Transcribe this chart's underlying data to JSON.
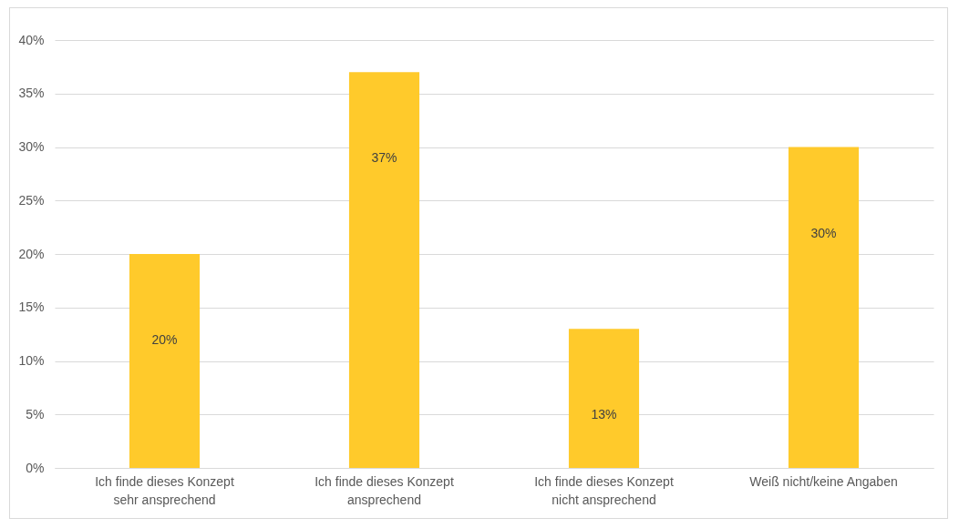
{
  "chart_data": {
    "type": "bar",
    "categories": [
      "Ich finde dieses Konzept sehr ansprechend",
      "Ich finde dieses Konzept ansprechend",
      "Ich finde dieses Konzept nicht ansprechend",
      "Weiß nicht/keine Angaben"
    ],
    "values": [
      20,
      37,
      13,
      30
    ],
    "value_labels": [
      "20%",
      "37%",
      "13%",
      "30%"
    ],
    "color": "#ffca2b",
    "ylim": [
      0,
      40
    ],
    "yticks": [
      {
        "value": 0,
        "label": "0%"
      },
      {
        "value": 5,
        "label": "5%"
      },
      {
        "value": 10,
        "label": "10%"
      },
      {
        "value": 15,
        "label": "15%"
      },
      {
        "value": 20,
        "label": "20%"
      },
      {
        "value": 25,
        "label": "25%"
      },
      {
        "value": 30,
        "label": "30%"
      },
      {
        "value": 35,
        "label": "35%"
      },
      {
        "value": 40,
        "label": "40%"
      }
    ],
    "grid": "y"
  }
}
